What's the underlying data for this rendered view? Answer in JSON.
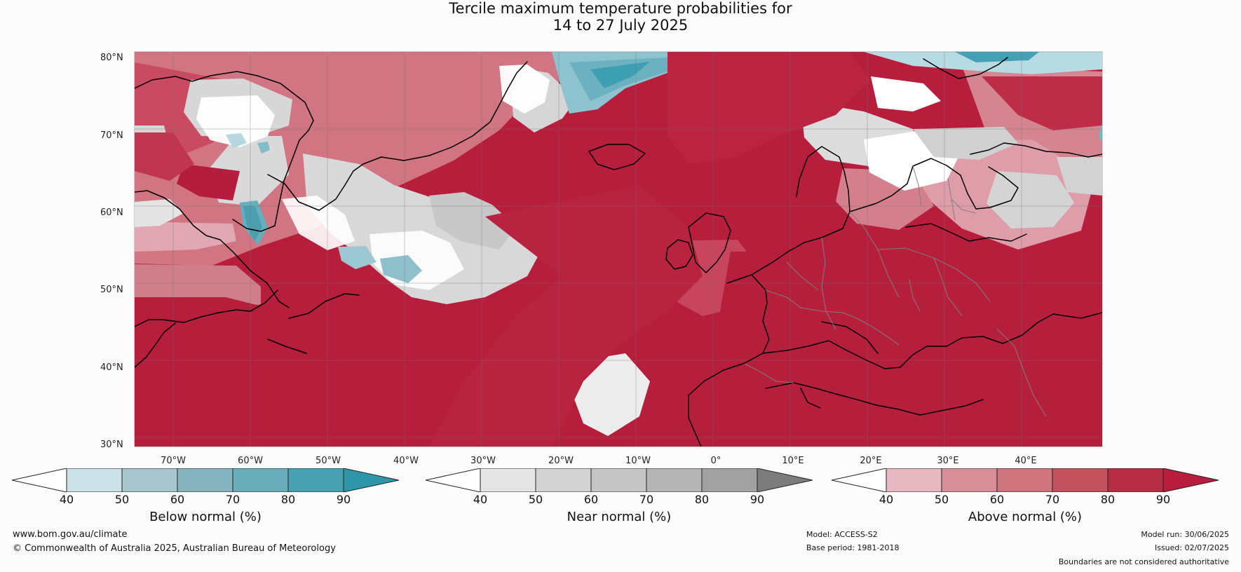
{
  "title": {
    "line1": "Tercile maximum temperature probabilities for",
    "line2": "14 to 27 July 2025"
  },
  "map": {
    "latitude_labels": [
      "80°N",
      "70°N",
      "60°N",
      "50°N",
      "40°N",
      "30°N"
    ],
    "longitude_labels": [
      "70°W",
      "60°W",
      "50°W",
      "40°W",
      "30°W",
      "20°W",
      "10°W",
      "0°",
      "10°E",
      "20°E",
      "30°E",
      "40°E"
    ]
  },
  "legends": [
    {
      "label": "Below normal (%)",
      "ticks": [
        "40",
        "50",
        "60",
        "70",
        "80",
        "90"
      ],
      "colors": [
        "#ffffff",
        "#cce1e8",
        "#a7c5cc",
        "#87b5bf",
        "#6aadbb",
        "#48a0b3",
        "#2f95a9"
      ]
    },
    {
      "label": "Near normal (%)",
      "ticks": [
        "40",
        "50",
        "60",
        "70",
        "80",
        "90"
      ],
      "colors": [
        "#ffffff",
        "#e5e5e5",
        "#d3d3d3",
        "#c5c5c5",
        "#b5b5b5",
        "#a1a1a1",
        "#7d7d7d"
      ]
    },
    {
      "label": "Above normal (%)",
      "ticks": [
        "40",
        "50",
        "60",
        "70",
        "80",
        "90"
      ],
      "colors": [
        "#ffffff",
        "#e6b8c1",
        "#d88e98",
        "#cf737d",
        "#c4515e",
        "#b72d43",
        "#b91d3d"
      ]
    }
  ],
  "footer": {
    "website": "www.bom.gov.au/climate",
    "copyright": "© Commonwealth of Australia 2025, Australian Bureau of Meteorology",
    "model": "Model: ACCESS-S2",
    "base_period": "Base period: 1981-2018",
    "model_run": "Model run: 30/06/2025",
    "issued": "Issued: 02/07/2025",
    "boundary_note": "Boundaries are not considered authoritative"
  }
}
